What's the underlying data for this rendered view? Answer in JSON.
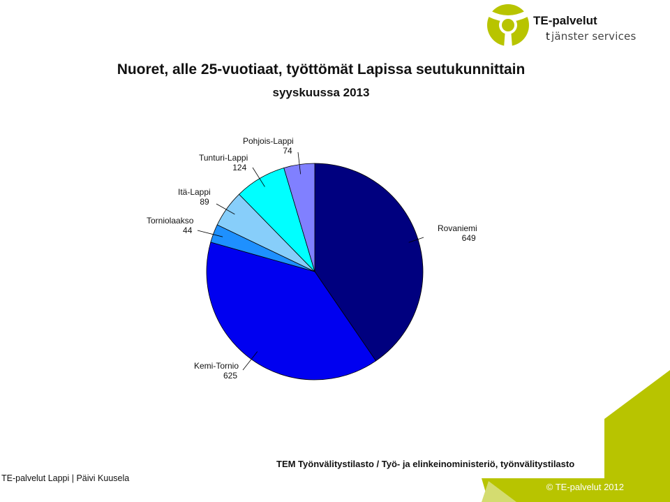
{
  "logo": {
    "brand": "TE-palvelut",
    "sub_t": "t",
    "sub_rest": "jänster  services",
    "colors": {
      "green": "#b8c400",
      "dark": "#111111"
    }
  },
  "chart_data": {
    "type": "pie",
    "title": "Nuoret, alle 25-vuotiaat, työttömät Lapissa seutukunnittain",
    "subtitle": "syyskuussa 2013",
    "categories": [
      "Rovaniemi",
      "Kemi-Tornio",
      "Torniolaakso",
      "Itä-Lappi",
      "Tunturi-Lappi",
      "Pohjois-Lappi"
    ],
    "values": [
      649,
      625,
      44,
      89,
      124,
      74
    ],
    "colors": [
      "#00007f",
      "#0000f0",
      "#1e90ff",
      "#87cefa",
      "#00ffff",
      "#8080ff"
    ],
    "value_labels": [
      "649",
      "625",
      "44",
      "89",
      "124",
      "74"
    ]
  },
  "source_note": "TEM Työnvälitystilasto / Työ- ja elinkeinoministeriö, työnvälitystilasto",
  "footer": {
    "left": "TE-palvelut Lappi  |  Päivi Kuusela",
    "copyright": "© TE-palvelut 2012"
  },
  "theme": {
    "accent": "#b8c400"
  }
}
